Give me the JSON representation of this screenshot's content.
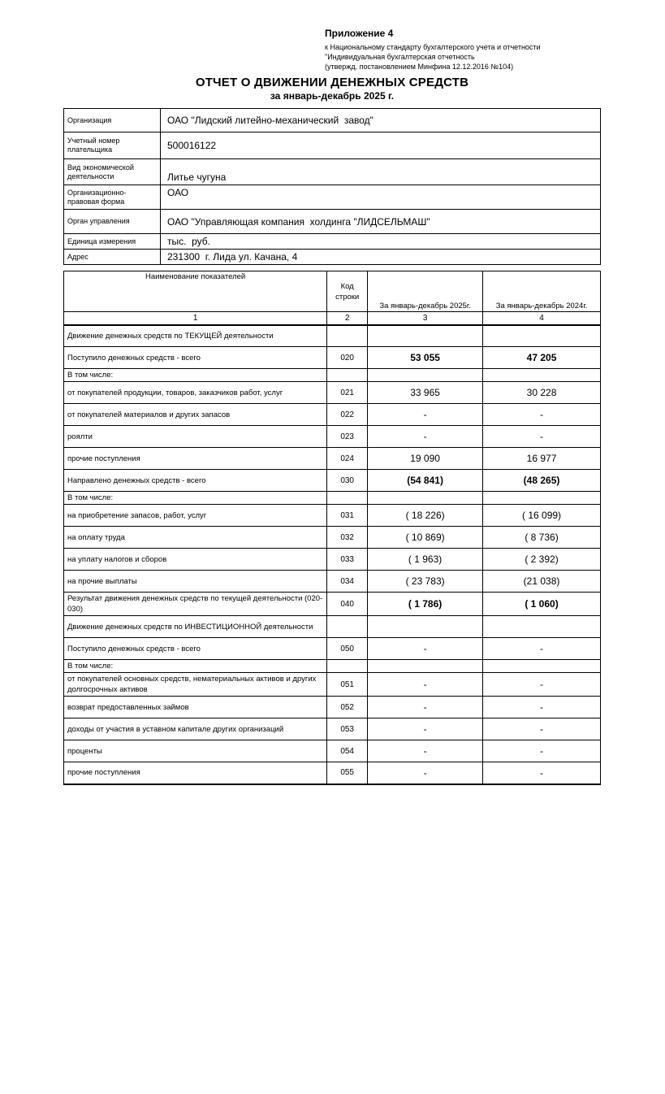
{
  "header": {
    "appendix": "Приложение 4",
    "standard_lines": [
      "к Национальному стандарту бухгалтерского учета и отчетности",
      "\"Индивидуальная бухгалтерская отчетность",
      "(утвержд. постановлением Минфина 12.12.2016 №104)"
    ],
    "title": "ОТЧЕТ О ДВИЖЕНИИ ДЕНЕЖНЫХ СРЕДСТВ",
    "subtitle": "за январь-декабрь 2025 г."
  },
  "info_table": {
    "rows": [
      {
        "label": "Организация",
        "value": "ОАО \"Лидский литейно-механический  завод\""
      },
      {
        "label": "Учетный номер плательщика",
        "value": "500016122"
      },
      {
        "label": "Вид экономической деятельности",
        "value": "Литье чугуна"
      },
      {
        "label": "Организационно-правовая форма",
        "value": "ОАО"
      },
      {
        "label": "Орган управления",
        "value": "ОАО \"Управляющая компания  холдинга \"ЛИДСЕЛЬМАШ\""
      },
      {
        "label": "Единица измерения",
        "value": "тыс.  руб."
      },
      {
        "label": "Адрес",
        "value": "231300  г. Лида ул. Качана, 4"
      }
    ]
  },
  "main_table": {
    "columns": [
      "Наименование показателей",
      "Код строки",
      "За январь-декабрь 2025г.",
      "За январь-декабрь 2024г."
    ],
    "column_numbers": [
      "1",
      "2",
      "3",
      "4"
    ],
    "rows": [
      {
        "name": "Движение денежных средств по ТЕКУЩЕЙ деятельности",
        "code": "",
        "v2025": "",
        "v2024": ""
      },
      {
        "name": "Поступило денежных средств - всего",
        "code": "020",
        "v2025": "53 055",
        "v2024": "47 205"
      },
      {
        "name": "В том числе:",
        "code": "",
        "v2025": "",
        "v2024": ""
      },
      {
        "name": "от покупателей продукции, товаров, заказчиков работ, услуг",
        "code": "021",
        "v2025": "33 965",
        "v2024": "30 228"
      },
      {
        "name": "от покупателей материалов и других запасов",
        "code": "022",
        "v2025": "-",
        "v2024": "-"
      },
      {
        "name": "роялти",
        "code": "023",
        "v2025": "-",
        "v2024": "-"
      },
      {
        "name": "прочие поступления",
        "code": "024",
        "v2025": "19 090",
        "v2024": "16 977"
      },
      {
        "name": "Направлено денежных средств - всего",
        "code": "030",
        "v2025": "(54 841)",
        "v2024": "(48 265)"
      },
      {
        "name": "В том числе:",
        "code": "",
        "v2025": "",
        "v2024": ""
      },
      {
        "name": "на приобретение запасов, работ, услуг",
        "code": "031",
        "v2025": "( 18 226)",
        "v2024": "( 16 099)"
      },
      {
        "name": "на оплату труда",
        "code": "032",
        "v2025": "( 10 869)",
        "v2024": "( 8 736)"
      },
      {
        "name": "на уплату налогов и сборов",
        "code": "033",
        "v2025": "( 1 963)",
        "v2024": "( 2 392)"
      },
      {
        "name": "на прочие выплаты",
        "code": "034",
        "v2025": "( 23 783)",
        "v2024": "(21 038)"
      },
      {
        "name": "Результат движения денежных средств по текущей деятельности (020-030)",
        "code": "040",
        "v2025": "( 1 786)",
        "v2024": "( 1 060)"
      },
      {
        "name": "Движение денежных средств по ИНВЕСТИЦИОННОЙ деятельности",
        "code": "",
        "v2025": "",
        "v2024": ""
      },
      {
        "name": "Поступило денежных средств - всего",
        "code": "050",
        "v2025": "-",
        "v2024": "-"
      },
      {
        "name": "В том числе:",
        "code": "",
        "v2025": "",
        "v2024": ""
      },
      {
        "name": "от покупателей основных средств, нематериальных активов и других долгосрочных активов",
        "code": "051",
        "v2025": "-",
        "v2024": "-"
      },
      {
        "name": "возврат предоставленных займов",
        "code": "052",
        "v2025": "-",
        "v2024": "-"
      },
      {
        "name": "доходы от участия в уставном капитале других организаций",
        "code": "053",
        "v2025": "-",
        "v2024": "-"
      },
      {
        "name": "проценты",
        "code": "054",
        "v2025": "-",
        "v2024": "-"
      },
      {
        "name": "прочие поступления",
        "code": "055",
        "v2025": "-",
        "v2024": "-"
      }
    ]
  }
}
